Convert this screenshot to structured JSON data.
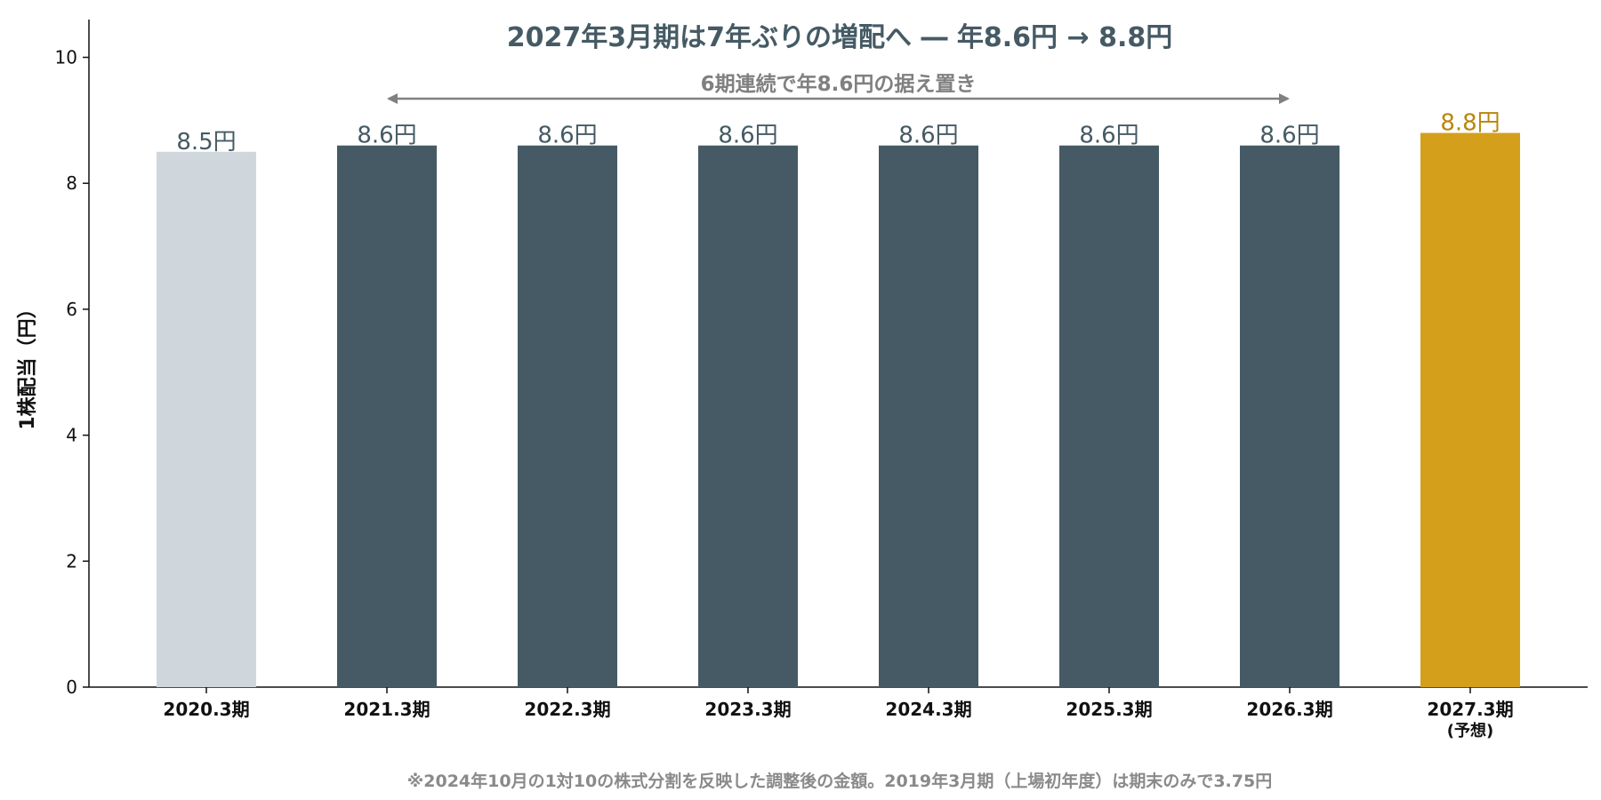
{
  "chart_data": {
    "type": "bar",
    "title": "2027年3月期は7年ぶりの増配へ ― 年8.6円 → 8.8円",
    "ylabel": "1株配当（円）",
    "xlabel": "",
    "ylim": [
      0,
      10.6
    ],
    "yticks": [
      0,
      2,
      4,
      6,
      8,
      10
    ],
    "categories": [
      "2020.3期",
      "2021.3期",
      "2022.3期",
      "2023.3期",
      "2024.3期",
      "2025.3期",
      "2026.3期",
      "2027.3期"
    ],
    "category_notes": [
      "",
      "",
      "",
      "",
      "",
      "",
      "",
      "(予想)"
    ],
    "values": [
      8.5,
      8.6,
      8.6,
      8.6,
      8.6,
      8.6,
      8.6,
      8.8
    ],
    "value_labels": [
      "8.5円",
      "8.6円",
      "8.6円",
      "8.6円",
      "8.6円",
      "8.6円",
      "8.6円",
      "8.8円"
    ],
    "bar_colors": [
      "#d0d7dc",
      "#455a64",
      "#455a64",
      "#455a64",
      "#455a64",
      "#455a64",
      "#455a64",
      "#d4a01c"
    ],
    "label_colors": [
      "#455a64",
      "#455a64",
      "#455a64",
      "#455a64",
      "#455a64",
      "#455a64",
      "#455a64",
      "#b8860b"
    ],
    "annotation": {
      "text": "6期連続で年8.6円の据え置き",
      "from_category": 1,
      "to_category": 6,
      "color": "#808080"
    },
    "grid": false,
    "legend": "none"
  },
  "footnote": "※2024年10月の1対10の株式分割を反映した調整後の金額。2019年3月期（上場初年度）は期末のみで3.75円"
}
